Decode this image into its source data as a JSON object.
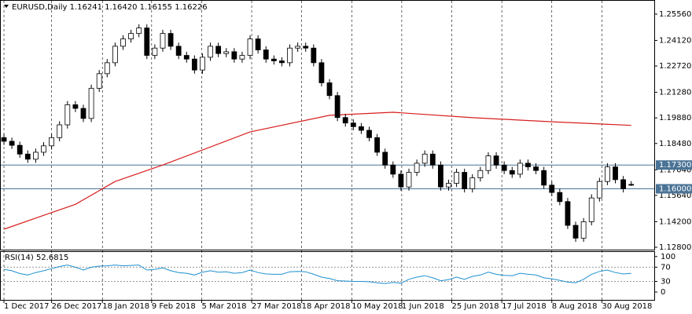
{
  "chart_data": {
    "type": "candlestick",
    "title": "EURUSD,Daily  1.16241 1.16420 1.16155 1.16226",
    "xlim": [
      -0.2,
      81.9
    ],
    "xticks": [
      {
        "value": 0,
        "label": "1 Dec 2017"
      },
      {
        "value": 6,
        "label": "26 Dec 2017"
      },
      {
        "value": 12.4,
        "label": "18 Jan 2018"
      },
      {
        "value": 18.6,
        "label": "9 Feb 2018"
      },
      {
        "value": 24.9,
        "label": "5 Mar 2018"
      },
      {
        "value": 31.2,
        "label": "27 Mar 2018"
      },
      {
        "value": 37.5,
        "label": "18 Apr 2018"
      },
      {
        "value": 43.8,
        "label": "10 May 2018"
      },
      {
        "value": 50.1,
        "label": "1 Jun 2018"
      },
      {
        "value": 56.4,
        "label": "25 Jun 2018"
      },
      {
        "value": 62.7,
        "label": "17 Jul 2018"
      },
      {
        "value": 69,
        "label": "8 Aug 2018"
      },
      {
        "value": 75.3,
        "label": "30 Aug 2018"
      }
    ],
    "ylim": [
      1.12671,
      1.26331
    ],
    "yticks": [
      {
        "value": 1.2556,
        "label": "1.25560"
      },
      {
        "value": 1.2412,
        "label": "1.24120"
      },
      {
        "value": 1.2272,
        "label": "1.22720"
      },
      {
        "value": 1.2128,
        "label": "1.21280"
      },
      {
        "value": 1.1988,
        "label": "1.19880"
      },
      {
        "value": 1.1848,
        "label": "1.18480"
      },
      {
        "value": 1.1704,
        "label": "1.17040"
      },
      {
        "value": 1.1564,
        "label": "1.15640"
      },
      {
        "value": 1.142,
        "label": "1.14200"
      },
      {
        "value": 1.128,
        "label": "1.12800"
      }
    ],
    "hlines": [
      {
        "value": 1.173,
        "label": "1.17300",
        "color": "#4a7396"
      },
      {
        "value": 1.16,
        "label": "1.16000",
        "color": "#4a7396"
      }
    ],
    "open": [
      1.188,
      1.186,
      1.1838,
      1.179,
      1.1762,
      1.18,
      1.1835,
      1.188,
      1.195,
      1.206,
      1.204,
      1.1985,
      1.215,
      1.223,
      1.229,
      1.238,
      1.242,
      1.245,
      1.248,
      1.233,
      1.237,
      1.245,
      1.238,
      1.233,
      1.231,
      1.225,
      1.232,
      1.238,
      1.234,
      1.235,
      1.231,
      1.233,
      1.242,
      1.236,
      1.231,
      1.23,
      1.229,
      1.237,
      1.238,
      1.237,
      1.229,
      1.218,
      1.211,
      1.199,
      1.196,
      1.194,
      1.192,
      1.188,
      1.18,
      1.173,
      1.168,
      1.161,
      1.169,
      1.174,
      1.179,
      1.173,
      1.161,
      1.163,
      1.169,
      1.16,
      1.166,
      1.17,
      1.178,
      1.173,
      1.17,
      1.168,
      1.174,
      1.172,
      1.17,
      1.162,
      1.158,
      1.153,
      1.14,
      1.133,
      1.142,
      1.155,
      1.164,
      1.172,
      1.165,
      1.16241
    ],
    "high": [
      1.19,
      1.188,
      1.1858,
      1.181,
      1.182,
      1.1855,
      1.19,
      1.197,
      1.208,
      1.208,
      1.206,
      1.217,
      1.225,
      1.231,
      1.24,
      1.244,
      1.247,
      1.25,
      1.25,
      1.239,
      1.247,
      1.247,
      1.24,
      1.235,
      1.233,
      1.234,
      1.24,
      1.24,
      1.237,
      1.237,
      1.235,
      1.244,
      1.244,
      1.238,
      1.233,
      1.232,
      1.239,
      1.24,
      1.24,
      1.239,
      1.231,
      1.22,
      1.213,
      1.201,
      1.198,
      1.196,
      1.194,
      1.19,
      1.182,
      1.175,
      1.17,
      1.171,
      1.176,
      1.181,
      1.181,
      1.175,
      1.165,
      1.171,
      1.171,
      1.168,
      1.172,
      1.18,
      1.18,
      1.175,
      1.172,
      1.176,
      1.176,
      1.174,
      1.172,
      1.164,
      1.16,
      1.155,
      1.142,
      1.144,
      1.157,
      1.166,
      1.174,
      1.174,
      1.167,
      1.1642
    ],
    "low": [
      1.184,
      1.1818,
      1.177,
      1.1742,
      1.1742,
      1.178,
      1.1815,
      1.186,
      1.193,
      1.202,
      1.1965,
      1.1965,
      1.213,
      1.221,
      1.227,
      1.236,
      1.24,
      1.243,
      1.231,
      1.231,
      1.235,
      1.236,
      1.231,
      1.229,
      1.223,
      1.223,
      1.23,
      1.232,
      1.232,
      1.229,
      1.229,
      1.231,
      1.234,
      1.229,
      1.228,
      1.227,
      1.227,
      1.235,
      1.235,
      1.227,
      1.216,
      1.209,
      1.197,
      1.194,
      1.192,
      1.19,
      1.186,
      1.178,
      1.171,
      1.166,
      1.159,
      1.159,
      1.167,
      1.172,
      1.171,
      1.159,
      1.159,
      1.161,
      1.158,
      1.158,
      1.164,
      1.168,
      1.171,
      1.168,
      1.166,
      1.166,
      1.17,
      1.168,
      1.16,
      1.156,
      1.151,
      1.138,
      1.131,
      1.131,
      1.14,
      1.153,
      1.162,
      1.163,
      1.158,
      1.16155
    ],
    "close": [
      1.186,
      1.1838,
      1.179,
      1.1762,
      1.18,
      1.1835,
      1.188,
      1.195,
      1.206,
      1.204,
      1.1985,
      1.215,
      1.223,
      1.229,
      1.238,
      1.242,
      1.245,
      1.248,
      1.233,
      1.237,
      1.245,
      1.238,
      1.233,
      1.231,
      1.225,
      1.232,
      1.238,
      1.234,
      1.235,
      1.231,
      1.233,
      1.242,
      1.236,
      1.231,
      1.23,
      1.229,
      1.237,
      1.238,
      1.237,
      1.229,
      1.218,
      1.211,
      1.199,
      1.196,
      1.194,
      1.192,
      1.188,
      1.18,
      1.173,
      1.168,
      1.161,
      1.169,
      1.174,
      1.179,
      1.173,
      1.161,
      1.163,
      1.169,
      1.16,
      1.166,
      1.17,
      1.178,
      1.173,
      1.17,
      1.168,
      1.174,
      1.172,
      1.17,
      1.162,
      1.158,
      1.153,
      1.14,
      1.133,
      1.142,
      1.155,
      1.164,
      1.172,
      1.165,
      1.16,
      1.16226
    ],
    "ma": {
      "color": "#d81e1e",
      "x": [
        0,
        5,
        9,
        14,
        20,
        31,
        41,
        49,
        59,
        69,
        79
      ],
      "values": [
        1.1379,
        1.1455,
        1.1515,
        1.164,
        1.173,
        1.1911,
        1.2002,
        1.2019,
        1.1989,
        1.1967,
        1.1947
      ]
    },
    "rsi": {
      "label": "RSI(14) 52.6815",
      "color": "#1e90d0",
      "ylim": [
        -22,
        115
      ],
      "yticks": [
        100,
        70,
        30,
        0
      ],
      "levels": [
        70,
        30
      ],
      "values": [
        64,
        60,
        52,
        48,
        55,
        60,
        66,
        72,
        76,
        70,
        62,
        70,
        73,
        74,
        76,
        74,
        75,
        76,
        62,
        64,
        68,
        60,
        55,
        53,
        48,
        56,
        60,
        56,
        57,
        53,
        55,
        62,
        55,
        51,
        50,
        50,
        57,
        58,
        57,
        50,
        42,
        38,
        32,
        31,
        30,
        30,
        29,
        26,
        24,
        27,
        25,
        36,
        42,
        46,
        40,
        32,
        35,
        42,
        36,
        44,
        48,
        56,
        50,
        47,
        46,
        53,
        50,
        48,
        40,
        37,
        33,
        28,
        26,
        36,
        50,
        58,
        62,
        55,
        51,
        52.6815
      ]
    }
  }
}
